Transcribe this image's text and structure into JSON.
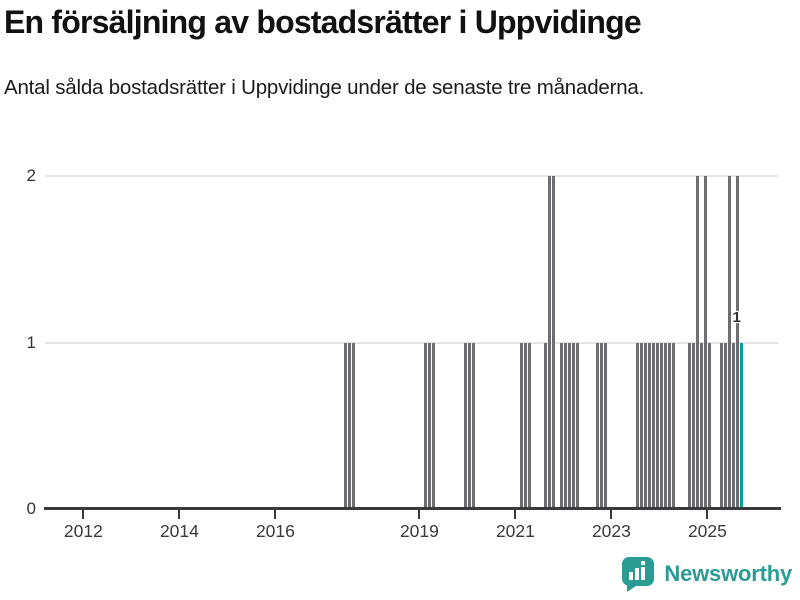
{
  "header": {
    "title": "En försäljning av bostadsrätter i Uppvidinge",
    "subtitle": "Antal sålda bostadsrätter i Uppvidinge under de senaste tre månaderna."
  },
  "footer": {
    "brand": "Newsworthy",
    "logo_icon": "newsworthy-bar-chart-speech-bubble"
  },
  "colors": {
    "bar": "#6d6d72",
    "highlight": "#00a2a1",
    "brand_teal": "#2b9c93",
    "gridline": "#e4e4e4",
    "axis": "#3a3a3a"
  },
  "chart_data": {
    "type": "bar",
    "title": "En försäljning av bostadsrätter i Uppvidinge",
    "subtitle": "Antal sålda bostadsrätter i Uppvidinge under de senaste tre månaderna.",
    "xlabel": "",
    "ylabel": "",
    "ylim": [
      0,
      2
    ],
    "yticks": [
      0,
      1,
      2
    ],
    "xticks": [
      2012,
      2014,
      2016,
      2019,
      2021,
      2023,
      2025
    ],
    "x_range_years": [
      2011.2,
      2026.47
    ],
    "grid": "horizontal-only",
    "legend": "none",
    "highlight_month": "2025-09",
    "annotation": {
      "text": "1",
      "month": "2025-09"
    },
    "series": [
      {
        "month": "2017-06",
        "value": 1
      },
      {
        "month": "2017-07",
        "value": 1
      },
      {
        "month": "2017-08",
        "value": 1
      },
      {
        "month": "2019-02",
        "value": 1
      },
      {
        "month": "2019-03",
        "value": 1
      },
      {
        "month": "2019-04",
        "value": 1
      },
      {
        "month": "2019-12",
        "value": 1
      },
      {
        "month": "2020-01",
        "value": 1
      },
      {
        "month": "2020-02",
        "value": 1
      },
      {
        "month": "2021-02",
        "value": 1
      },
      {
        "month": "2021-03",
        "value": 1
      },
      {
        "month": "2021-04",
        "value": 1
      },
      {
        "month": "2021-08",
        "value": 1
      },
      {
        "month": "2021-09",
        "value": 2
      },
      {
        "month": "2021-10",
        "value": 2
      },
      {
        "month": "2021-12",
        "value": 1
      },
      {
        "month": "2022-01",
        "value": 1
      },
      {
        "month": "2022-02",
        "value": 1
      },
      {
        "month": "2022-03",
        "value": 1
      },
      {
        "month": "2022-04",
        "value": 1
      },
      {
        "month": "2022-09",
        "value": 1
      },
      {
        "month": "2022-10",
        "value": 1
      },
      {
        "month": "2022-11",
        "value": 1
      },
      {
        "month": "2023-07",
        "value": 1
      },
      {
        "month": "2023-08",
        "value": 1
      },
      {
        "month": "2023-09",
        "value": 1
      },
      {
        "month": "2023-10",
        "value": 1
      },
      {
        "month": "2023-11",
        "value": 1
      },
      {
        "month": "2023-12",
        "value": 1
      },
      {
        "month": "2024-01",
        "value": 1
      },
      {
        "month": "2024-02",
        "value": 1
      },
      {
        "month": "2024-03",
        "value": 1
      },
      {
        "month": "2024-04",
        "value": 1
      },
      {
        "month": "2024-08",
        "value": 1
      },
      {
        "month": "2024-09",
        "value": 1
      },
      {
        "month": "2024-10",
        "value": 2
      },
      {
        "month": "2024-11",
        "value": 1
      },
      {
        "month": "2024-12",
        "value": 2
      },
      {
        "month": "2025-01",
        "value": 1
      },
      {
        "month": "2025-04",
        "value": 1
      },
      {
        "month": "2025-05",
        "value": 1
      },
      {
        "month": "2025-06",
        "value": 2
      },
      {
        "month": "2025-07",
        "value": 1
      },
      {
        "month": "2025-08",
        "value": 2
      },
      {
        "month": "2025-09",
        "value": 1
      }
    ]
  }
}
